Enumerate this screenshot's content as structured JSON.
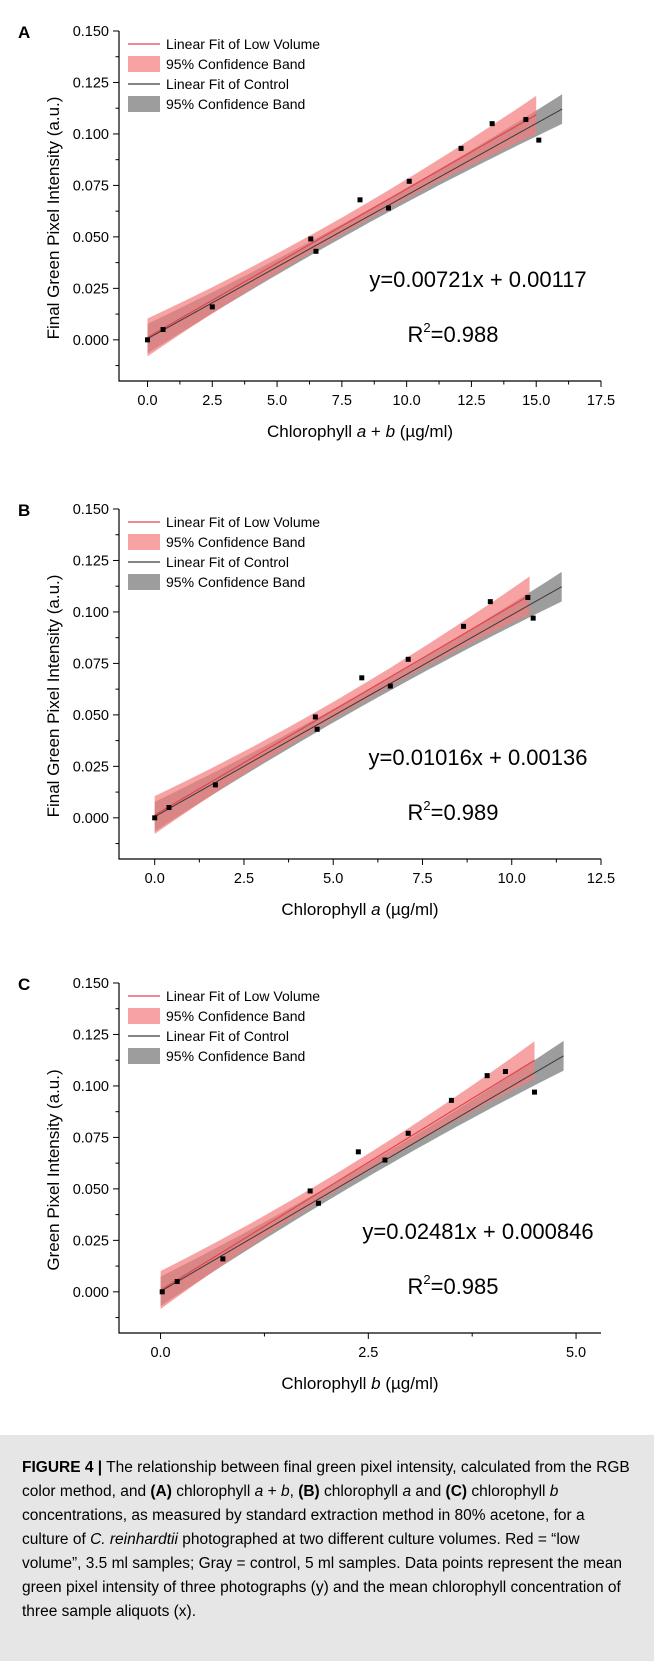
{
  "chart_data": [
    {
      "panel_label": "A",
      "type": "scatter",
      "xlabel": {
        "pre": "Chlorophyll ",
        "italic": "a",
        "post": " + ",
        "italic2": "b",
        "post2": " (µg/ml)"
      },
      "ylabel": "Final Green Pixel Intensity (a.u.)",
      "xlim": [
        -1.1,
        17.5
      ],
      "ylim": [
        -0.02,
        0.15
      ],
      "xticks": [
        0.0,
        2.5,
        5.0,
        7.5,
        10.0,
        12.5,
        15.0,
        17.5
      ],
      "xtick_labels": [
        "0.0",
        "2.5",
        "5.0",
        "7.5",
        "10.0",
        "12.5",
        "15.0",
        "17.5"
      ],
      "yticks": [
        0.0,
        0.025,
        0.05,
        0.075,
        0.1,
        0.125,
        0.15
      ],
      "ytick_labels": [
        "0.000",
        "0.025",
        "0.050",
        "0.075",
        "0.100",
        "0.125",
        "0.150"
      ],
      "points": [
        [
          0.0,
          0.0
        ],
        [
          0.6,
          0.005
        ],
        [
          2.5,
          0.016
        ],
        [
          6.3,
          0.049
        ],
        [
          6.5,
          0.043
        ],
        [
          8.2,
          0.068
        ],
        [
          9.3,
          0.064
        ],
        [
          10.1,
          0.077
        ],
        [
          12.1,
          0.093
        ],
        [
          13.3,
          0.105
        ],
        [
          14.6,
          0.107
        ],
        [
          15.1,
          0.097
        ]
      ],
      "low_fit": {
        "slope": 0.00721,
        "intercept": 0.00117,
        "x_range": [
          0.0,
          15.0
        ]
      },
      "control_fit": {
        "slope": 0.00697,
        "intercept": 0.00055,
        "x_range": [
          0.0,
          16.0
        ]
      },
      "equation": "y=0.00721x + 0.00117",
      "r2_prefix": "R",
      "r2_sup": "2",
      "r2_value": "=0.988",
      "legend": [
        "Linear Fit of Low Volume",
        "95% Confidence Band",
        "Linear Fit of Control",
        "95% Confidence Band"
      ]
    },
    {
      "panel_label": "B",
      "type": "scatter",
      "xlabel": {
        "pre": "Chlorophyll ",
        "italic": "a",
        "post": " (µg/ml)"
      },
      "ylabel": "Final Green Pixel Intensity (a.u.)",
      "xlim": [
        -1.0,
        12.5
      ],
      "ylim": [
        -0.02,
        0.15
      ],
      "xticks": [
        0.0,
        2.5,
        5.0,
        7.5,
        10.0,
        12.5
      ],
      "xtick_labels": [
        "0.0",
        "2.5",
        "5.0",
        "7.5",
        "10.0",
        "12.5"
      ],
      "yticks": [
        0.0,
        0.025,
        0.05,
        0.075,
        0.1,
        0.125,
        0.15
      ],
      "ytick_labels": [
        "0.000",
        "0.025",
        "0.050",
        "0.075",
        "0.100",
        "0.125",
        "0.150"
      ],
      "points": [
        [
          0.0,
          0.0
        ],
        [
          0.4,
          0.005
        ],
        [
          1.7,
          0.016
        ],
        [
          4.5,
          0.049
        ],
        [
          4.55,
          0.043
        ],
        [
          5.8,
          0.068
        ],
        [
          6.6,
          0.064
        ],
        [
          7.1,
          0.077
        ],
        [
          8.65,
          0.093
        ],
        [
          9.4,
          0.105
        ],
        [
          10.45,
          0.107
        ],
        [
          10.6,
          0.097
        ]
      ],
      "low_fit": {
        "slope": 0.01016,
        "intercept": 0.00136,
        "x_range": [
          0.0,
          10.5
        ]
      },
      "control_fit": {
        "slope": 0.0098,
        "intercept": 0.00055,
        "x_range": [
          0.0,
          11.4
        ]
      },
      "equation": "y=0.01016x + 0.00136",
      "r2_prefix": "R",
      "r2_sup": "2",
      "r2_value": "=0.989",
      "legend": [
        "Linear Fit of Low Volume",
        "95% Confidence Band",
        "Linear Fit of Control",
        "95% Confidence Band"
      ]
    },
    {
      "panel_label": "C",
      "type": "scatter",
      "xlabel": {
        "pre": "Chlorophyll ",
        "italic": "b",
        "post": " (µg/ml)"
      },
      "ylabel": "Green Pixel Intensity (a.u.)",
      "xlim": [
        -0.5,
        5.3
      ],
      "ylim": [
        -0.02,
        0.15
      ],
      "xticks": [
        0.0,
        2.5,
        5.0
      ],
      "xtick_labels": [
        "0.0",
        "2.5",
        "5.0"
      ],
      "yticks": [
        0.0,
        0.025,
        0.05,
        0.075,
        0.1,
        0.125,
        0.15
      ],
      "ytick_labels": [
        "0.000",
        "0.025",
        "0.050",
        "0.075",
        "0.100",
        "0.125",
        "0.150"
      ],
      "points": [
        [
          0.02,
          0.0
        ],
        [
          0.2,
          0.005
        ],
        [
          0.75,
          0.016
        ],
        [
          1.8,
          0.049
        ],
        [
          1.9,
          0.043
        ],
        [
          2.38,
          0.068
        ],
        [
          2.7,
          0.064
        ],
        [
          2.98,
          0.077
        ],
        [
          3.5,
          0.093
        ],
        [
          3.93,
          0.105
        ],
        [
          4.15,
          0.107
        ],
        [
          4.5,
          0.097
        ]
      ],
      "low_fit": {
        "slope": 0.02481,
        "intercept": 0.000846,
        "x_range": [
          0.0,
          4.5
        ]
      },
      "control_fit": {
        "slope": 0.0236,
        "intercept": 0.0002,
        "x_range": [
          0.0,
          4.85
        ]
      },
      "equation": "y=0.02481x + 0.000846",
      "r2_prefix": "R",
      "r2_sup": "2",
      "r2_value": "=0.985",
      "legend": [
        "Linear Fit of Low Volume",
        "95% Confidence Band",
        "Linear Fit of Control",
        "95% Confidence Band"
      ]
    }
  ],
  "colors": {
    "low_line": "#e0454f",
    "low_band": "#f47c7c",
    "control_line": "#3a3a3a",
    "control_band": "#8c8c8c",
    "points": "#000000",
    "caption_bg": "#e6e6e6"
  },
  "caption": {
    "label": "FIGURE 4 |",
    "segments": [
      {
        "t": " The relationship between final green pixel intensity, calculated from the RGB color method, and "
      },
      {
        "t": "(A)",
        "b": true
      },
      {
        "t": " chlorophyll "
      },
      {
        "t": "a",
        "i": true
      },
      {
        "t": " + "
      },
      {
        "t": "b",
        "i": true
      },
      {
        "t": ", "
      },
      {
        "t": "(B)",
        "b": true
      },
      {
        "t": " chlorophyll "
      },
      {
        "t": "a",
        "i": true
      },
      {
        "t": " and "
      },
      {
        "t": "(C)",
        "b": true
      },
      {
        "t": " chlorophyll "
      },
      {
        "t": "b",
        "i": true
      },
      {
        "t": " concentrations, as measured by standard extraction method in 80% acetone, for a culture of "
      },
      {
        "t": "C. reinhardtii",
        "i": true
      },
      {
        "t": " photographed at two different culture volumes. Red = “low volume”, 3.5 ml samples; Gray = control, 5 ml samples. Data points represent the mean green pixel intensity of three photographs (y) and the mean chlorophyll concentration of three sample aliquots (x)."
      }
    ]
  }
}
